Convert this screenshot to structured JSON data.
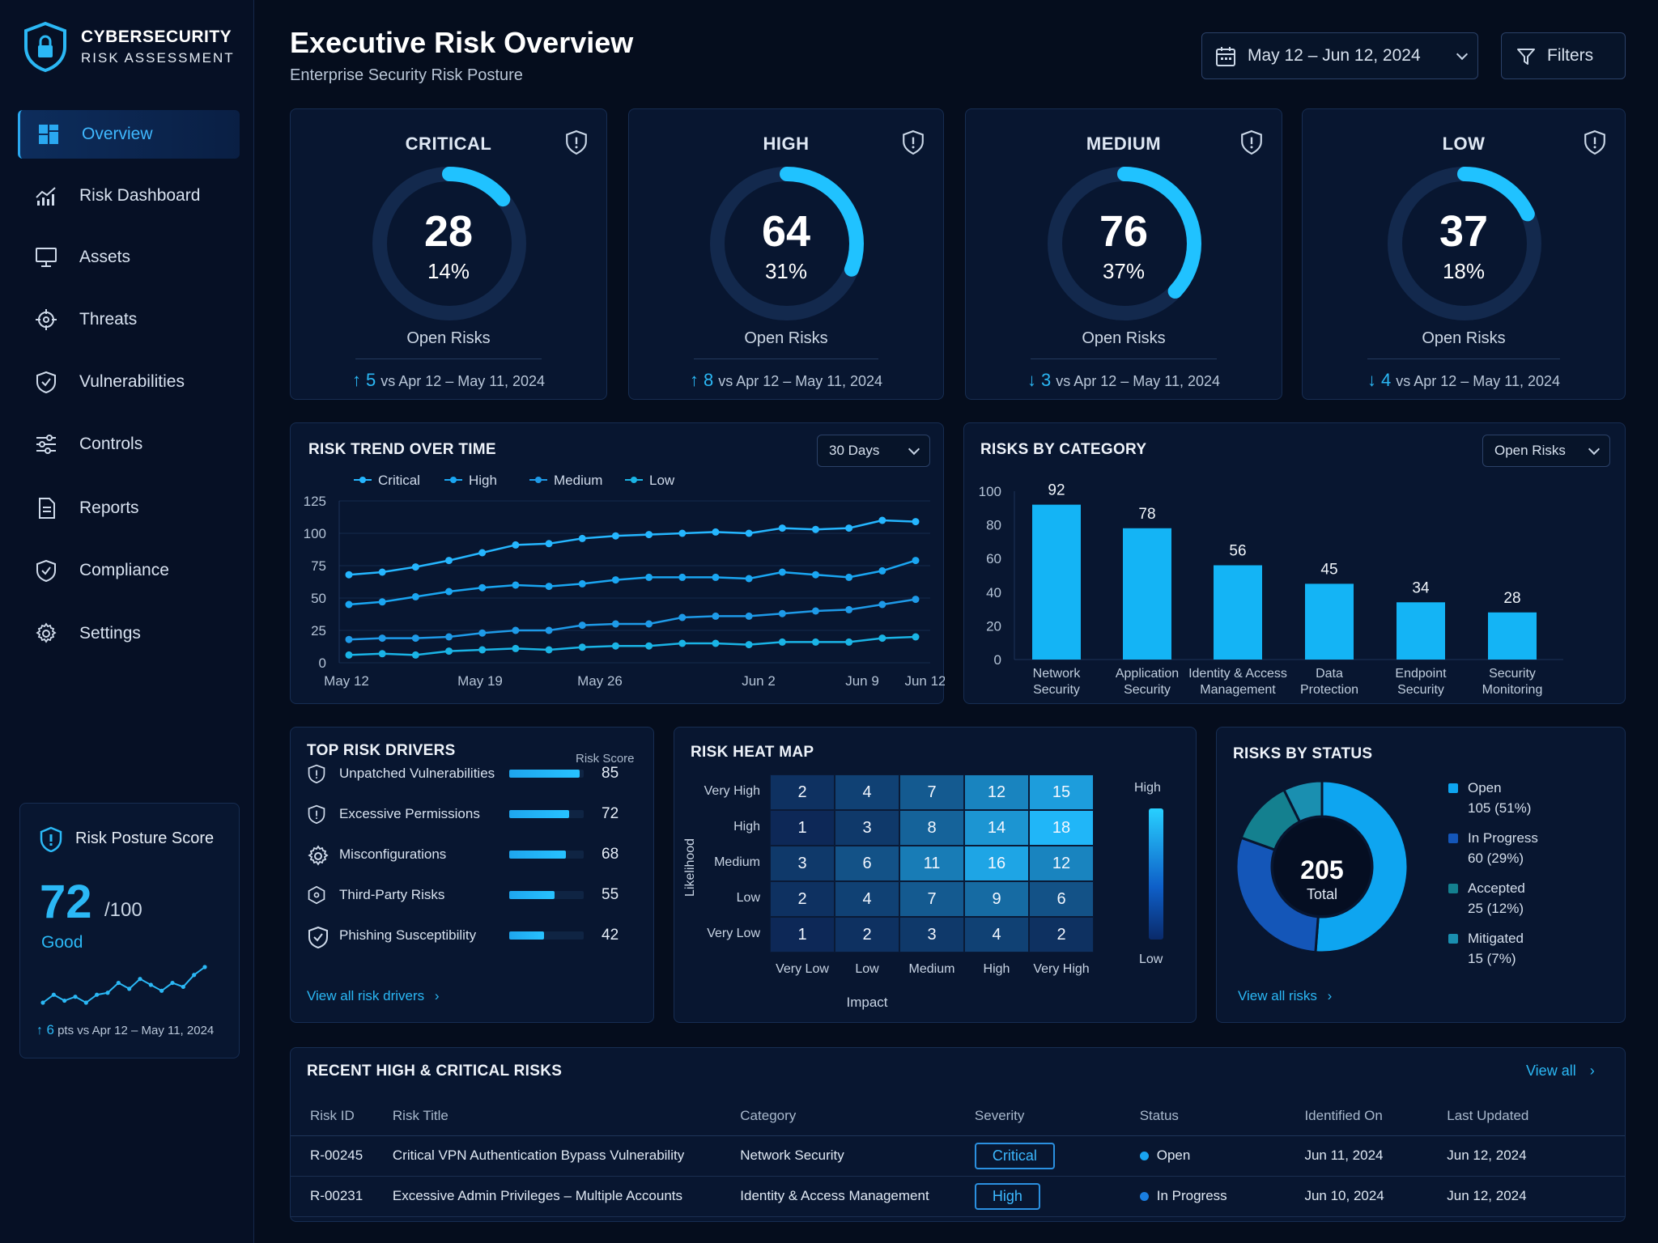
{
  "app": {
    "title_line1": "CYBERSECURITY",
    "title_line2": "RISK ASSESSMENT"
  },
  "nav": [
    {
      "label": "Overview",
      "icon": "dashboard-icon",
      "active": true
    },
    {
      "label": "Risk Dashboard",
      "icon": "chart-icon"
    },
    {
      "label": "Assets",
      "icon": "monitor-icon"
    },
    {
      "label": "Threats",
      "icon": "crosshair-icon"
    },
    {
      "label": "Vulnerabilities",
      "icon": "shield-check-icon"
    },
    {
      "label": "Controls",
      "icon": "sliders-icon"
    },
    {
      "label": "Reports",
      "icon": "document-icon"
    },
    {
      "label": "Compliance",
      "icon": "shield-check-icon"
    },
    {
      "label": "Settings",
      "icon": "gear-icon"
    }
  ],
  "posture": {
    "title": "Risk Posture Score",
    "score": "72",
    "max": "/100",
    "rating": "Good",
    "delta": "6",
    "delta_text": "pts vs Apr 12 – May 11, 2024",
    "sparkline": [
      40,
      44,
      41,
      43,
      40,
      44,
      45,
      50,
      47,
      52,
      49,
      46,
      50,
      48,
      54,
      58
    ]
  },
  "header": {
    "title": "Executive Risk Overview",
    "subtitle": "Enterprise Security Risk Posture",
    "date_range": "May 12 – Jun 12, 2024",
    "filters_label": "Filters"
  },
  "severity": [
    {
      "title": "CRITICAL",
      "count": "28",
      "pct": "14%",
      "fraction": 0.14,
      "open_label": "Open Risks",
      "delta": "5",
      "direction": "up",
      "compare": "vs Apr 12 – May 11, 2024"
    },
    {
      "title": "HIGH",
      "count": "64",
      "pct": "31%",
      "fraction": 0.31,
      "open_label": "Open Risks",
      "delta": "8",
      "direction": "up",
      "compare": "vs Apr 12 – May 11, 2024"
    },
    {
      "title": "MEDIUM",
      "count": "76",
      "pct": "37%",
      "fraction": 0.37,
      "open_label": "Open Risks",
      "delta": "3",
      "direction": "down",
      "compare": "vs Apr 12 – May 11, 2024"
    },
    {
      "title": "LOW",
      "count": "37",
      "pct": "18%",
      "fraction": 0.18,
      "open_label": "Open Risks",
      "delta": "4",
      "direction": "down",
      "compare": "vs Apr 12 – May 11, 2024"
    }
  ],
  "trend": {
    "title": "RISK TREND OVER TIME",
    "range_label": "30 Days",
    "chart_data": {
      "type": "line",
      "x_ticks": [
        "May 12",
        "May 19",
        "May 26",
        "Jun 2",
        "Jun 9",
        "Jun 12"
      ],
      "ylim": [
        0,
        125
      ],
      "y_ticks": [
        "125",
        "100",
        "75",
        "50",
        "25",
        "0"
      ],
      "series": [
        {
          "name": "Critical",
          "values": [
            68,
            70,
            74,
            79,
            85,
            91,
            92,
            96,
            98,
            99,
            100,
            101,
            100,
            104,
            103,
            104,
            110,
            109
          ]
        },
        {
          "name": "High",
          "values": [
            45,
            47,
            51,
            55,
            58,
            60,
            59,
            61,
            64,
            66,
            66,
            66,
            65,
            70,
            68,
            66,
            71,
            79
          ]
        },
        {
          "name": "Medium",
          "values": [
            18,
            19,
            19,
            20,
            23,
            25,
            25,
            29,
            30,
            30,
            35,
            36,
            36,
            38,
            40,
            41,
            45,
            49
          ]
        },
        {
          "name": "Low",
          "values": [
            6,
            7,
            6,
            9,
            10,
            11,
            10,
            12,
            13,
            13,
            15,
            15,
            14,
            16,
            16,
            16,
            19,
            20
          ]
        }
      ]
    }
  },
  "category": {
    "title": "RISKS BY CATEGORY",
    "filter_label": "Open Risks",
    "chart_data": {
      "type": "bar",
      "categories": [
        [
          "Network",
          "Security"
        ],
        [
          "Application",
          "Security"
        ],
        [
          "Identity & Access",
          "Management"
        ],
        [
          "Data",
          "Protection"
        ],
        [
          "Endpoint",
          "Security"
        ],
        [
          "Security",
          "Monitoring"
        ]
      ],
      "values": [
        92,
        78,
        56,
        45,
        34,
        28
      ],
      "ylim": [
        0,
        100
      ],
      "y_ticks": [
        "100",
        "80",
        "60",
        "40",
        "20",
        "0"
      ]
    }
  },
  "drivers": {
    "title": "TOP RISK DRIVERS",
    "score_header": "Risk Score",
    "items": [
      {
        "label": "Unpatched Vulnerabilities",
        "score": "85",
        "value": 85,
        "icon": "shield-icon"
      },
      {
        "label": "Excessive Permissions",
        "score": "72",
        "value": 72,
        "icon": "shield-icon"
      },
      {
        "label": "Misconfigurations",
        "score": "68",
        "value": 68,
        "icon": "gear-icon"
      },
      {
        "label": "Third-Party Risks",
        "score": "55",
        "value": 55,
        "icon": "hexagon-icon"
      },
      {
        "label": "Phishing Susceptibility",
        "score": "42",
        "value": 42,
        "icon": "shield-check-icon"
      }
    ],
    "link": "View all risk drivers"
  },
  "heatmap": {
    "title": "RISK HEAT MAP",
    "rows": [
      "Very High",
      "High",
      "Medium",
      "Low",
      "Very Low"
    ],
    "cols": [
      "Very Low",
      "Low",
      "Medium",
      "High",
      "Very High"
    ],
    "values": [
      [
        2,
        4,
        7,
        12,
        15
      ],
      [
        1,
        3,
        8,
        14,
        18
      ],
      [
        3,
        6,
        11,
        16,
        12
      ],
      [
        2,
        4,
        7,
        9,
        6
      ],
      [
        1,
        2,
        3,
        4,
        2
      ]
    ],
    "y_label": "Likelihood",
    "x_label": "Impact",
    "scale_high": "High",
    "scale_low": "Low"
  },
  "status": {
    "title": "RISKS BY STATUS",
    "total": "205",
    "total_label": "Total",
    "chart_data": {
      "type": "pie",
      "slices": [
        {
          "name": "Open",
          "value": 105,
          "detail": "105 (51%)",
          "color": "#0ea5f0"
        },
        {
          "name": "In Progress",
          "value": 60,
          "detail": "60 (29%)",
          "color": "#1456b8"
        },
        {
          "name": "Accepted",
          "value": 25,
          "detail": "25 (12%)",
          "color": "#14808f"
        },
        {
          "name": "Mitigated",
          "value": 15,
          "detail": "15 (7%)",
          "color": "#1a8fb0"
        }
      ]
    },
    "link": "View all risks"
  },
  "recent": {
    "title": "RECENT HIGH & CRITICAL RISKS",
    "view_all": "View all",
    "columns": [
      "Risk ID",
      "Risk Title",
      "Category",
      "Severity",
      "Status",
      "Identified On",
      "Last Updated"
    ],
    "rows": [
      {
        "id": "R-00245",
        "title": "Critical VPN Authentication Bypass Vulnerability",
        "category": "Network Security",
        "severity": "Critical",
        "status": "Open",
        "status_color": "#19a4f0",
        "identified": "Jun 11, 2024",
        "updated": "Jun 12, 2024"
      },
      {
        "id": "R-00231",
        "title": "Excessive Admin Privileges – Multiple Accounts",
        "category": "Identity & Access Management",
        "severity": "High",
        "status": "In Progress",
        "status_color": "#1a7ee0",
        "identified": "Jun 10, 2024",
        "updated": "Jun 12, 2024"
      }
    ]
  },
  "colors": {
    "accent": "#2bb8f5",
    "bg": "#050d1d",
    "card": "#081630"
  }
}
